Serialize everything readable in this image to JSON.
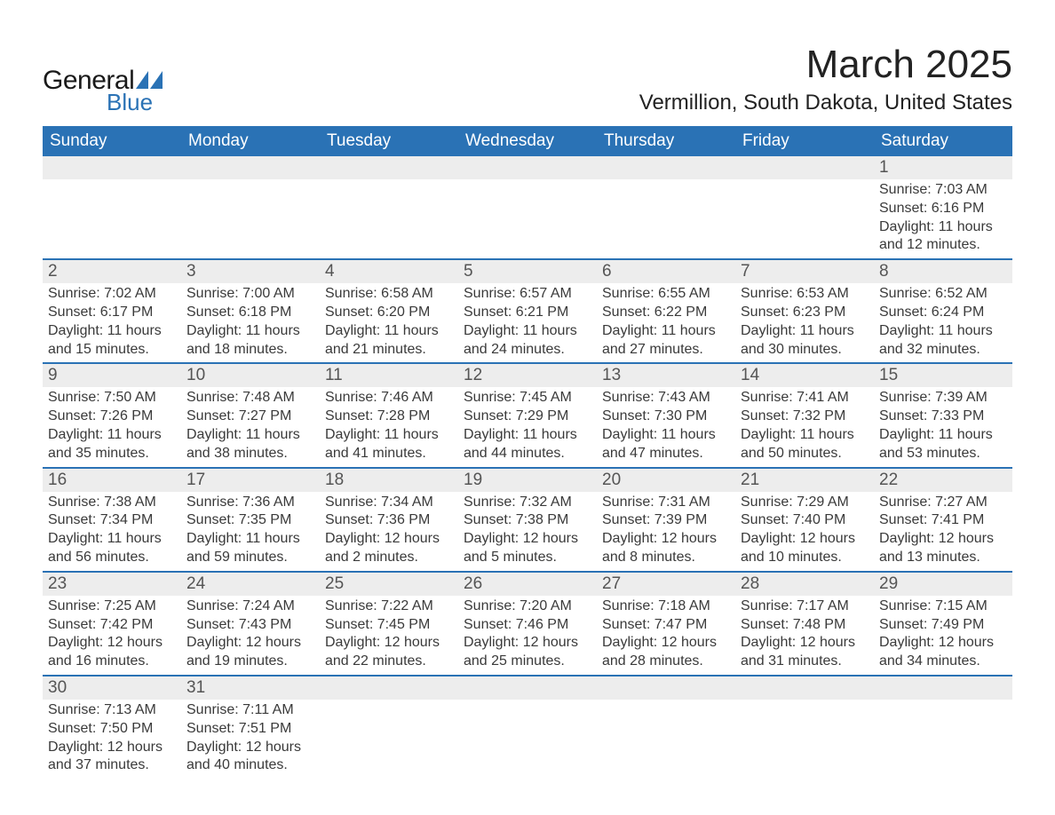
{
  "brand": {
    "general": "General",
    "blue": "Blue",
    "sail_color": "#2a72b5"
  },
  "header": {
    "month_title": "March 2025",
    "location": "Vermillion, South Dakota, United States"
  },
  "colors": {
    "header_bg": "#2a72b5",
    "header_text": "#ffffff",
    "daynum_bg": "#ededed",
    "row_divider": "#2a72b5",
    "body_text": "#3a3a3a",
    "page_bg": "#ffffff"
  },
  "typography": {
    "month_title_fontsize": 44,
    "location_fontsize": 24,
    "weekday_fontsize": 19,
    "daynum_fontsize": 19,
    "cell_fontsize": 16
  },
  "weekdays": [
    "Sunday",
    "Monday",
    "Tuesday",
    "Wednesday",
    "Thursday",
    "Friday",
    "Saturday"
  ],
  "weeks": [
    [
      null,
      null,
      null,
      null,
      null,
      null,
      {
        "n": "1",
        "sunrise": "Sunrise: 7:03 AM",
        "sunset": "Sunset: 6:16 PM",
        "day1": "Daylight: 11 hours",
        "day2": "and 12 minutes."
      }
    ],
    [
      {
        "n": "2",
        "sunrise": "Sunrise: 7:02 AM",
        "sunset": "Sunset: 6:17 PM",
        "day1": "Daylight: 11 hours",
        "day2": "and 15 minutes."
      },
      {
        "n": "3",
        "sunrise": "Sunrise: 7:00 AM",
        "sunset": "Sunset: 6:18 PM",
        "day1": "Daylight: 11 hours",
        "day2": "and 18 minutes."
      },
      {
        "n": "4",
        "sunrise": "Sunrise: 6:58 AM",
        "sunset": "Sunset: 6:20 PM",
        "day1": "Daylight: 11 hours",
        "day2": "and 21 minutes."
      },
      {
        "n": "5",
        "sunrise": "Sunrise: 6:57 AM",
        "sunset": "Sunset: 6:21 PM",
        "day1": "Daylight: 11 hours",
        "day2": "and 24 minutes."
      },
      {
        "n": "6",
        "sunrise": "Sunrise: 6:55 AM",
        "sunset": "Sunset: 6:22 PM",
        "day1": "Daylight: 11 hours",
        "day2": "and 27 minutes."
      },
      {
        "n": "7",
        "sunrise": "Sunrise: 6:53 AM",
        "sunset": "Sunset: 6:23 PM",
        "day1": "Daylight: 11 hours",
        "day2": "and 30 minutes."
      },
      {
        "n": "8",
        "sunrise": "Sunrise: 6:52 AM",
        "sunset": "Sunset: 6:24 PM",
        "day1": "Daylight: 11 hours",
        "day2": "and 32 minutes."
      }
    ],
    [
      {
        "n": "9",
        "sunrise": "Sunrise: 7:50 AM",
        "sunset": "Sunset: 7:26 PM",
        "day1": "Daylight: 11 hours",
        "day2": "and 35 minutes."
      },
      {
        "n": "10",
        "sunrise": "Sunrise: 7:48 AM",
        "sunset": "Sunset: 7:27 PM",
        "day1": "Daylight: 11 hours",
        "day2": "and 38 minutes."
      },
      {
        "n": "11",
        "sunrise": "Sunrise: 7:46 AM",
        "sunset": "Sunset: 7:28 PM",
        "day1": "Daylight: 11 hours",
        "day2": "and 41 minutes."
      },
      {
        "n": "12",
        "sunrise": "Sunrise: 7:45 AM",
        "sunset": "Sunset: 7:29 PM",
        "day1": "Daylight: 11 hours",
        "day2": "and 44 minutes."
      },
      {
        "n": "13",
        "sunrise": "Sunrise: 7:43 AM",
        "sunset": "Sunset: 7:30 PM",
        "day1": "Daylight: 11 hours",
        "day2": "and 47 minutes."
      },
      {
        "n": "14",
        "sunrise": "Sunrise: 7:41 AM",
        "sunset": "Sunset: 7:32 PM",
        "day1": "Daylight: 11 hours",
        "day2": "and 50 minutes."
      },
      {
        "n": "15",
        "sunrise": "Sunrise: 7:39 AM",
        "sunset": "Sunset: 7:33 PM",
        "day1": "Daylight: 11 hours",
        "day2": "and 53 minutes."
      }
    ],
    [
      {
        "n": "16",
        "sunrise": "Sunrise: 7:38 AM",
        "sunset": "Sunset: 7:34 PM",
        "day1": "Daylight: 11 hours",
        "day2": "and 56 minutes."
      },
      {
        "n": "17",
        "sunrise": "Sunrise: 7:36 AM",
        "sunset": "Sunset: 7:35 PM",
        "day1": "Daylight: 11 hours",
        "day2": "and 59 minutes."
      },
      {
        "n": "18",
        "sunrise": "Sunrise: 7:34 AM",
        "sunset": "Sunset: 7:36 PM",
        "day1": "Daylight: 12 hours",
        "day2": "and 2 minutes."
      },
      {
        "n": "19",
        "sunrise": "Sunrise: 7:32 AM",
        "sunset": "Sunset: 7:38 PM",
        "day1": "Daylight: 12 hours",
        "day2": "and 5 minutes."
      },
      {
        "n": "20",
        "sunrise": "Sunrise: 7:31 AM",
        "sunset": "Sunset: 7:39 PM",
        "day1": "Daylight: 12 hours",
        "day2": "and 8 minutes."
      },
      {
        "n": "21",
        "sunrise": "Sunrise: 7:29 AM",
        "sunset": "Sunset: 7:40 PM",
        "day1": "Daylight: 12 hours",
        "day2": "and 10 minutes."
      },
      {
        "n": "22",
        "sunrise": "Sunrise: 7:27 AM",
        "sunset": "Sunset: 7:41 PM",
        "day1": "Daylight: 12 hours",
        "day2": "and 13 minutes."
      }
    ],
    [
      {
        "n": "23",
        "sunrise": "Sunrise: 7:25 AM",
        "sunset": "Sunset: 7:42 PM",
        "day1": "Daylight: 12 hours",
        "day2": "and 16 minutes."
      },
      {
        "n": "24",
        "sunrise": "Sunrise: 7:24 AM",
        "sunset": "Sunset: 7:43 PM",
        "day1": "Daylight: 12 hours",
        "day2": "and 19 minutes."
      },
      {
        "n": "25",
        "sunrise": "Sunrise: 7:22 AM",
        "sunset": "Sunset: 7:45 PM",
        "day1": "Daylight: 12 hours",
        "day2": "and 22 minutes."
      },
      {
        "n": "26",
        "sunrise": "Sunrise: 7:20 AM",
        "sunset": "Sunset: 7:46 PM",
        "day1": "Daylight: 12 hours",
        "day2": "and 25 minutes."
      },
      {
        "n": "27",
        "sunrise": "Sunrise: 7:18 AM",
        "sunset": "Sunset: 7:47 PM",
        "day1": "Daylight: 12 hours",
        "day2": "and 28 minutes."
      },
      {
        "n": "28",
        "sunrise": "Sunrise: 7:17 AM",
        "sunset": "Sunset: 7:48 PM",
        "day1": "Daylight: 12 hours",
        "day2": "and 31 minutes."
      },
      {
        "n": "29",
        "sunrise": "Sunrise: 7:15 AM",
        "sunset": "Sunset: 7:49 PM",
        "day1": "Daylight: 12 hours",
        "day2": "and 34 minutes."
      }
    ],
    [
      {
        "n": "30",
        "sunrise": "Sunrise: 7:13 AM",
        "sunset": "Sunset: 7:50 PM",
        "day1": "Daylight: 12 hours",
        "day2": "and 37 minutes."
      },
      {
        "n": "31",
        "sunrise": "Sunrise: 7:11 AM",
        "sunset": "Sunset: 7:51 PM",
        "day1": "Daylight: 12 hours",
        "day2": "and 40 minutes."
      },
      null,
      null,
      null,
      null,
      null
    ]
  ]
}
